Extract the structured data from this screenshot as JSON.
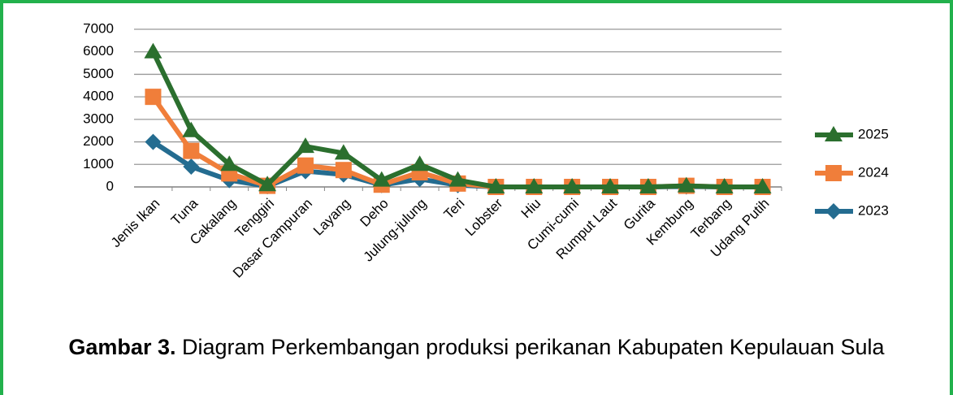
{
  "chart_data": {
    "type": "line",
    "categories": [
      "Jenis Ikan",
      "Tuna",
      "Cakalang",
      "Tenggiri",
      "Dasar Campuran",
      "Layang",
      "Deho",
      "Julung-julung",
      "Teri",
      "Lobster",
      "Hiu",
      "Cumi-cumi",
      "Rumput Laut",
      "Gurita",
      "Kembung",
      "Terbang",
      "Udang Putih"
    ],
    "series": [
      {
        "name": "2025",
        "color": "#2b6f2e",
        "marker": "triangle",
        "values": [
          6000,
          2500,
          1000,
          100,
          1800,
          1500,
          300,
          1000,
          300,
          0,
          0,
          0,
          0,
          0,
          50,
          0,
          0
        ]
      },
      {
        "name": "2024",
        "color": "#f07e3a",
        "marker": "square",
        "values": [
          4000,
          1600,
          600,
          50,
          950,
          750,
          100,
          650,
          150,
          0,
          0,
          0,
          0,
          0,
          50,
          0,
          0
        ]
      },
      {
        "name": "2023",
        "color": "#246c90",
        "marker": "diamond",
        "values": [
          2000,
          900,
          300,
          30,
          700,
          550,
          80,
          350,
          80,
          0,
          0,
          0,
          0,
          0,
          20,
          0,
          0
        ]
      }
    ],
    "ylim": [
      0,
      7000
    ],
    "yticks": [
      0,
      1000,
      2000,
      3000,
      4000,
      5000,
      6000,
      7000
    ],
    "grid": true,
    "caption": {
      "label": "Gambar 3.",
      "text": "Diagram Perkembangan produksi perikanan Kabupaten Kepulauan Sula"
    }
  }
}
